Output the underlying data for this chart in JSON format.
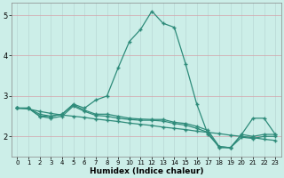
{
  "xlabel": "Humidex (Indice chaleur)",
  "x": [
    0,
    1,
    2,
    3,
    4,
    5,
    6,
    7,
    8,
    9,
    10,
    11,
    12,
    13,
    14,
    15,
    16,
    17,
    18,
    19,
    20,
    21,
    22,
    23
  ],
  "line_peak": [
    2.7,
    2.7,
    2.5,
    2.5,
    2.55,
    2.8,
    2.7,
    2.9,
    3.0,
    3.7,
    4.35,
    4.65,
    5.1,
    4.8,
    4.7,
    3.8,
    2.8,
    2.05,
    1.75,
    1.72,
    2.05,
    2.45,
    2.45,
    2.05
  ],
  "line_upper": [
    2.7,
    2.7,
    2.55,
    2.5,
    2.55,
    2.78,
    2.65,
    2.55,
    2.55,
    2.5,
    2.45,
    2.43,
    2.42,
    2.42,
    2.35,
    2.32,
    2.25,
    2.15,
    1.75,
    1.72,
    2.05,
    2.0,
    2.05,
    2.05
  ],
  "line_lower": [
    2.7,
    2.7,
    2.5,
    2.45,
    2.5,
    2.75,
    2.62,
    2.52,
    2.5,
    2.45,
    2.42,
    2.4,
    2.4,
    2.38,
    2.32,
    2.28,
    2.2,
    2.1,
    1.72,
    1.72,
    1.98,
    1.95,
    2.0,
    2.0
  ],
  "line_base": [
    2.7,
    2.68,
    2.62,
    2.57,
    2.53,
    2.5,
    2.47,
    2.43,
    2.4,
    2.37,
    2.33,
    2.3,
    2.27,
    2.23,
    2.2,
    2.17,
    2.13,
    2.1,
    2.07,
    2.03,
    2.0,
    1.97,
    1.93,
    1.9
  ],
  "line_color": "#2e8b7a",
  "bg_color": "#cceee8",
  "grid_color_v": "#b8d8d4",
  "grid_color_h": "#d4a0a8",
  "ylim": [
    1.5,
    5.3
  ],
  "xlim": [
    -0.5,
    23.5
  ],
  "yticks": [
    2,
    3,
    4,
    5
  ],
  "xticks": [
    0,
    1,
    2,
    3,
    4,
    5,
    6,
    7,
    8,
    9,
    10,
    11,
    12,
    13,
    14,
    15,
    16,
    17,
    18,
    19,
    20,
    21,
    22,
    23
  ]
}
